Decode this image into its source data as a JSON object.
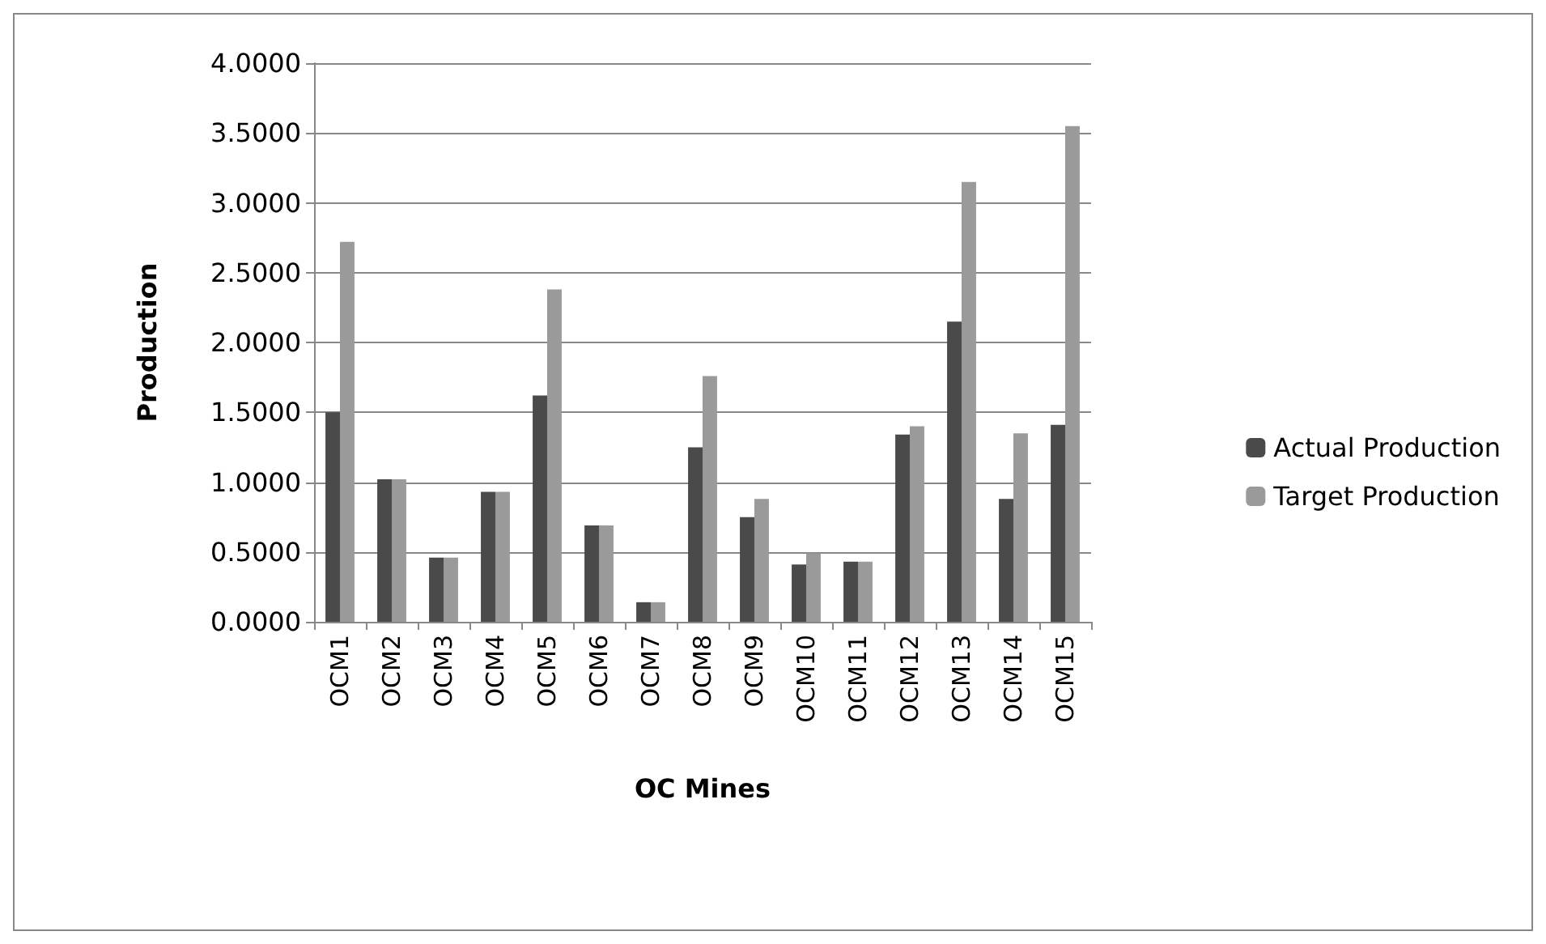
{
  "chart_data": {
    "type": "bar",
    "xlabel": "OC Mines",
    "ylabel": "Production",
    "categories": [
      "OCM1",
      "OCM2",
      "OCM3",
      "OCM4",
      "OCM5",
      "OCM6",
      "OCM7",
      "OCM8",
      "OCM9",
      "OCM10",
      "OCM11",
      "OCM12",
      "OCM13",
      "OCM14",
      "OCM15"
    ],
    "series": [
      {
        "name": "Actual Production",
        "color": "#4a4a4a",
        "values": [
          1.5,
          1.02,
          0.46,
          0.93,
          1.62,
          0.69,
          0.14,
          1.25,
          0.75,
          0.41,
          0.43,
          1.34,
          2.15,
          0.88,
          1.41
        ]
      },
      {
        "name": "Target Production",
        "color": "#9a9a9a",
        "values": [
          2.72,
          1.02,
          0.46,
          0.93,
          2.38,
          0.69,
          0.14,
          1.76,
          0.88,
          0.49,
          0.43,
          1.4,
          3.15,
          1.35,
          3.55
        ]
      }
    ],
    "ylim": [
      0,
      4
    ],
    "yticks": [
      {
        "value": 0,
        "label": "0.0000"
      },
      {
        "value": 0.5,
        "label": "0.5000"
      },
      {
        "value": 1,
        "label": "1.0000"
      },
      {
        "value": 1.5,
        "label": "1.5000"
      },
      {
        "value": 2,
        "label": "2.0000"
      },
      {
        "value": 2.5,
        "label": "2.5000"
      },
      {
        "value": 3,
        "label": "3.0000"
      },
      {
        "value": 3.5,
        "label": "3.5000"
      },
      {
        "value": 4,
        "label": "4.0000"
      }
    ],
    "grid": "y",
    "legend": "right"
  }
}
